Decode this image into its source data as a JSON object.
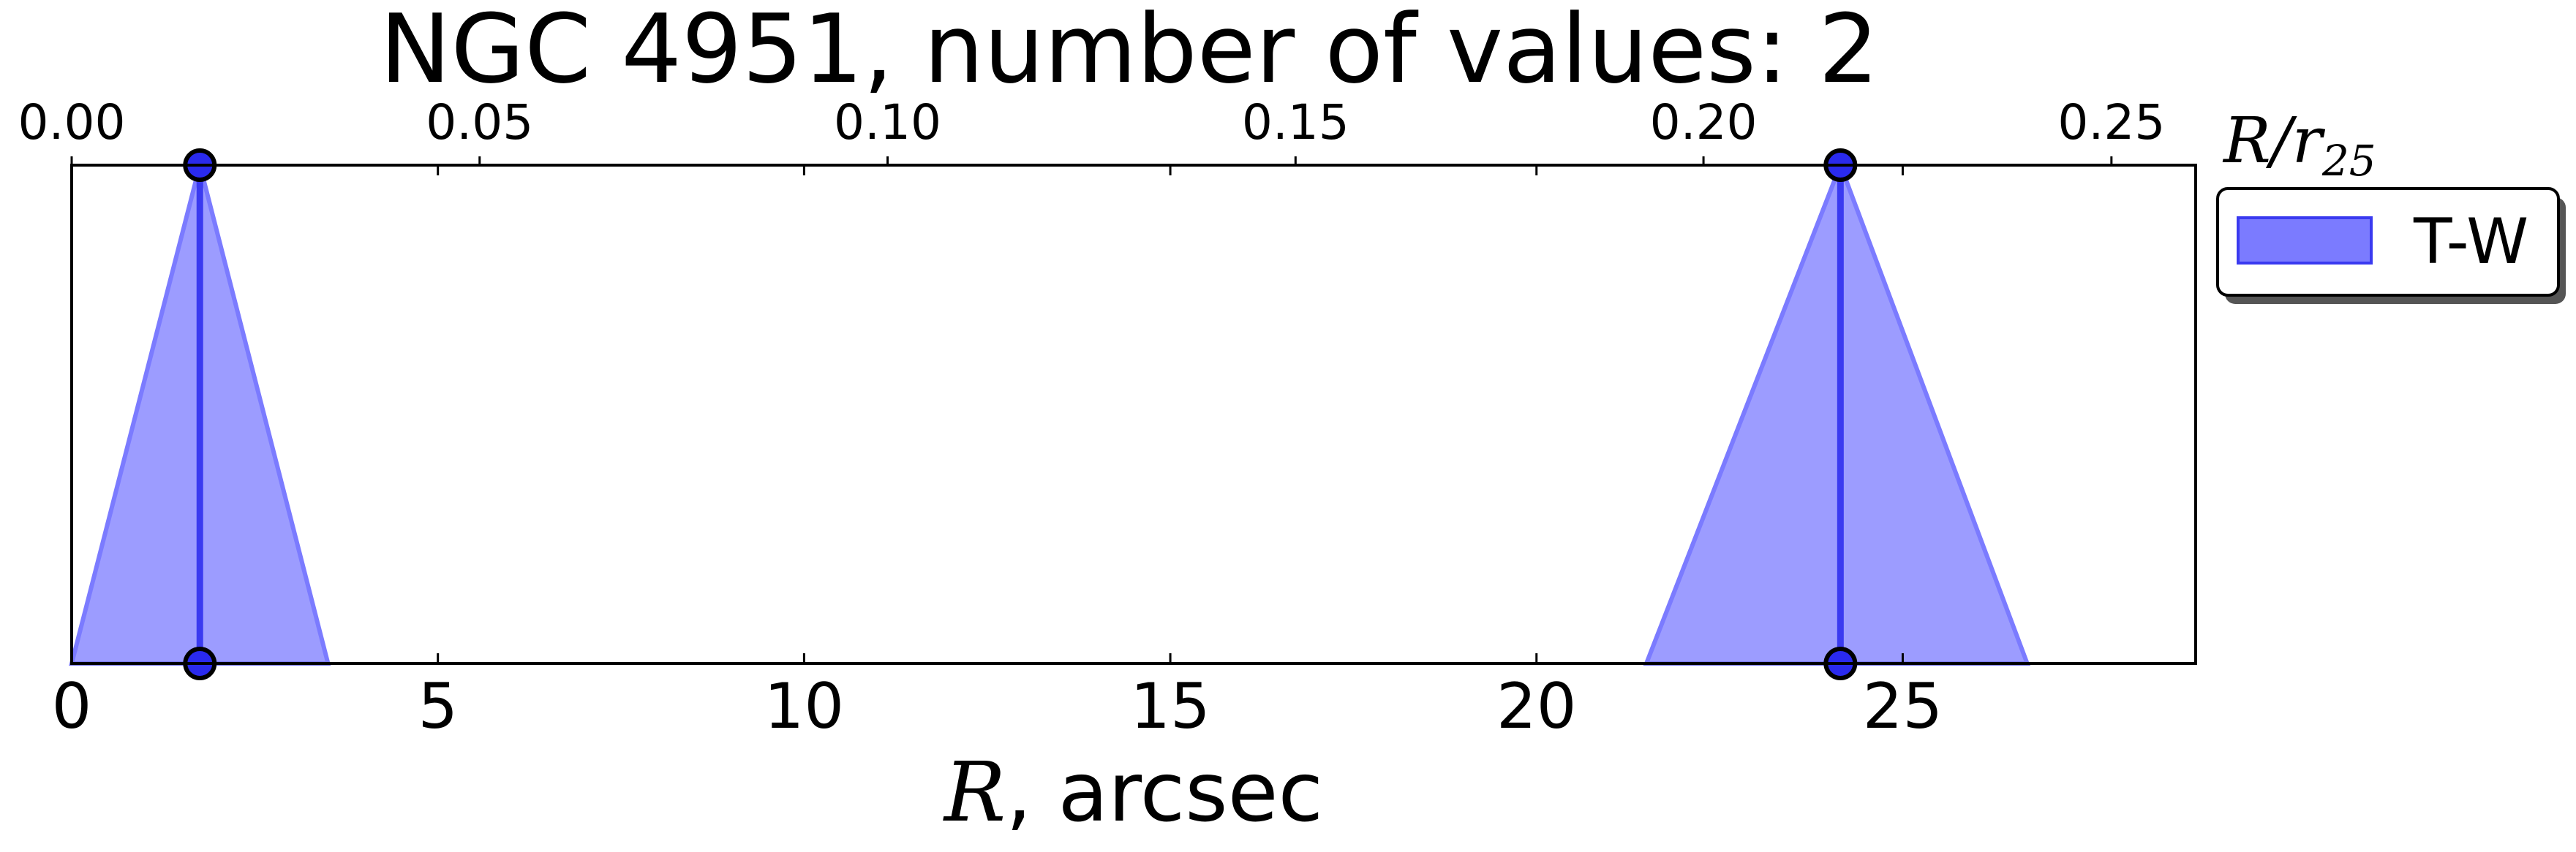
{
  "chart_data": {
    "type": "area",
    "title": "NGC 4951, number of values: 2",
    "xlabel_math": "R",
    "xlabel_text": ", arcsec",
    "xlim": [
      0,
      29
    ],
    "x_ticks": [
      0,
      5,
      10,
      15,
      20,
      25
    ],
    "x_tick_labels": [
      "0",
      "5",
      "10",
      "15",
      "20",
      "25"
    ],
    "top_axis": {
      "label_main": "R/r",
      "label_sub": "25",
      "ticks": [
        0.0,
        0.05,
        0.1,
        0.15,
        0.2,
        0.25
      ],
      "tick_labels": [
        "0.00",
        "0.05",
        "0.10",
        "0.15",
        "0.20",
        "0.25"
      ],
      "r25_arcsec": 111.4
    },
    "grid": false,
    "legend": {
      "placement": "outside-top-right",
      "entries": [
        "T-W"
      ]
    },
    "series": [
      {
        "name": "T-W",
        "color": "#7b7bff",
        "line_color": "#3a3af0",
        "points": [
          {
            "r": 1.75,
            "low": 0.0,
            "high": 3.5
          },
          {
            "r": 24.15,
            "low": 21.5,
            "high": 26.7
          }
        ]
      }
    ]
  }
}
